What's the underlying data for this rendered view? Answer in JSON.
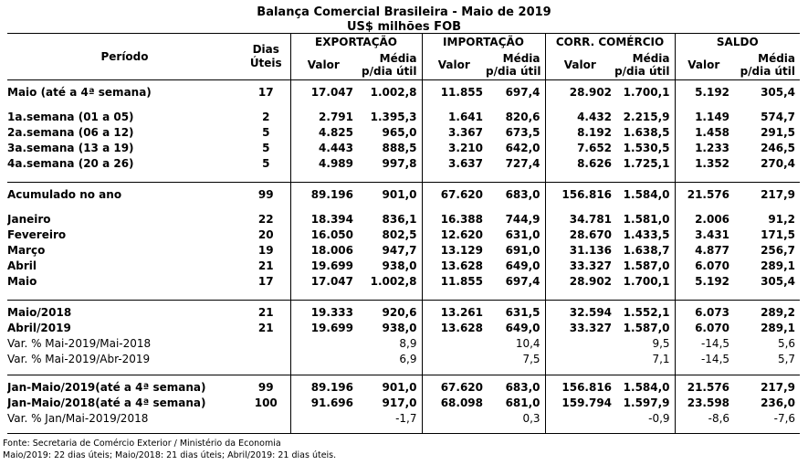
{
  "title": {
    "line1": "Balança Comercial Brasileira - Maio de 2019",
    "line2": "US$ milhões FOB"
  },
  "colors": {
    "text": "#000000",
    "border": "#000000",
    "background": "#ffffff"
  },
  "header": {
    "period": "Período",
    "dias_line1": "Dias",
    "dias_line2": "Úteis",
    "groups": [
      "EXPORTAÇÃO",
      "IMPORTAÇÃO",
      "CORR. COMÉRCIO",
      "SALDO"
    ],
    "valor": "Valor",
    "media_line1": "Média",
    "media_line2": "p/dia útil"
  },
  "table": {
    "columns": [
      "Período",
      "Dias Úteis",
      "Exportação Valor",
      "Exportação Média p/dia útil",
      "Importação Valor",
      "Importação Média p/dia útil",
      "Corr. Comércio Valor",
      "Corr. Comércio Média p/dia útil",
      "Saldo Valor",
      "Saldo Média p/dia útil"
    ],
    "rows": [
      {
        "pad": 5
      },
      {
        "cells": [
          "Maio (até a 4ª semana)",
          "17",
          "17.047",
          "1.002,8",
          "11.855",
          "697,4",
          "28.902",
          "1.700,1",
          "5.192",
          "305,4"
        ]
      },
      {
        "pad": 10
      },
      {
        "cells": [
          "1a.semana (01 a 05)",
          "2",
          "2.791",
          "1.395,3",
          "1.641",
          "820,6",
          "4.432",
          "2.215,9",
          "1.149",
          "574,7"
        ]
      },
      {
        "cells": [
          "2a.semana (06 a 12)",
          "5",
          "4.825",
          "965,0",
          "3.367",
          "673,5",
          "8.192",
          "1.638,5",
          "1.458",
          "291,5"
        ]
      },
      {
        "cells": [
          "3a.semana (13 a 19)",
          "5",
          "4.443",
          "888,5",
          "3.210",
          "642,0",
          "7.652",
          "1.530,5",
          "1.233",
          "246,5"
        ]
      },
      {
        "cells": [
          "4a.semana (20 a 26)",
          "5",
          "4.989",
          "997,8",
          "3.637",
          "727,4",
          "8.626",
          "1.725,1",
          "1.352",
          "270,4"
        ]
      },
      {
        "pad": 12
      },
      {
        "pad": 5,
        "top": true
      },
      {
        "cells": [
          "Acumulado no ano",
          "99",
          "89.196",
          "901,0",
          "67.620",
          "683,0",
          "156.816",
          "1.584,0",
          "21.576",
          "217,9"
        ]
      },
      {
        "pad": 10
      },
      {
        "cells": [
          "Janeiro",
          "22",
          "18.394",
          "836,1",
          "16.388",
          "744,9",
          "34.781",
          "1.581,0",
          "2.006",
          "91,2"
        ]
      },
      {
        "cells": [
          "Fevereiro",
          "20",
          "16.050",
          "802,5",
          "12.620",
          "631,0",
          "28.670",
          "1.433,5",
          "3.431",
          "171,5"
        ]
      },
      {
        "cells": [
          "Março",
          "19",
          "18.006",
          "947,7",
          "13.129",
          "691,0",
          "31.136",
          "1.638,7",
          "4.877",
          "256,7"
        ]
      },
      {
        "cells": [
          "Abril",
          "21",
          "19.699",
          "938,0",
          "13.628",
          "649,0",
          "33.327",
          "1.587,0",
          "6.070",
          "289,1"
        ]
      },
      {
        "cells": [
          "Maio",
          "17",
          "17.047",
          "1.002,8",
          "11.855",
          "697,4",
          "28.902",
          "1.700,1",
          "5.192",
          "305,4"
        ]
      },
      {
        "pad": 12
      },
      {
        "pad": 5,
        "top": true
      },
      {
        "cells": [
          "Maio/2018",
          "21",
          "19.333",
          "920,6",
          "13.261",
          "631,5",
          "32.594",
          "1.552,1",
          "6.073",
          "289,2"
        ]
      },
      {
        "cells": [
          "Abril/2019",
          "21",
          "19.699",
          "938,0",
          "13.628",
          "649,0",
          "33.327",
          "1.587,0",
          "6.070",
          "289,1"
        ]
      },
      {
        "cells": [
          "Var. % Mai-2019/Mai-2018",
          "",
          "",
          "8,9",
          "",
          "10,4",
          "",
          "9,5",
          "-14,5",
          "5,6"
        ],
        "bold": false
      },
      {
        "cells": [
          "Var. % Mai-2019/Abr-2019",
          "",
          "",
          "6,9",
          "",
          "7,5",
          "",
          "7,1",
          "-14,5",
          "5,7"
        ],
        "bold": false
      },
      {
        "pad": 9
      },
      {
        "pad": 5,
        "top": true
      },
      {
        "cells": [
          "Jan-Maio/2019(até a 4ª semana)",
          "99",
          "89.196",
          "901,0",
          "67.620",
          "683,0",
          "156.816",
          "1.584,0",
          "21.576",
          "217,9"
        ]
      },
      {
        "cells": [
          "Jan-Maio/2018(até a 4ª semana)",
          "100",
          "91.696",
          "917,0",
          "68.098",
          "681,0",
          "159.794",
          "1.597,9",
          "23.598",
          "236,0"
        ]
      },
      {
        "cells": [
          "Var. % Jan/Mai-2019/2018",
          "",
          "",
          "-1,7",
          "",
          "0,3",
          "",
          "-0,9",
          "-8,6",
          "-7,6"
        ],
        "bold": false
      },
      {
        "pad": 8,
        "bottom": true
      }
    ]
  },
  "footer": {
    "line1": "Fonte: Secretaria de Comércio Exterior / Ministério da Economia",
    "line2": "Maio/2019: 22 dias úteis; Maio/2018: 21 dias úteis; Abril/2019: 21 dias úteis."
  }
}
